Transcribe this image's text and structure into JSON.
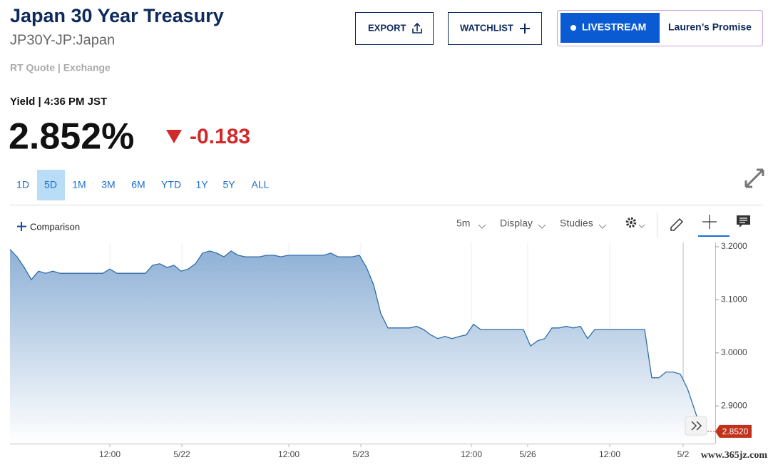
{
  "header": {
    "title": "Japan 30 Year Treasury",
    "symbol": "JP30Y-JP:Japan",
    "quote_source": "RT Quote | Exchange"
  },
  "buttons": {
    "export": "EXPORT",
    "watchlist": "WATCHLIST",
    "livestream": "LIVESTREAM",
    "promo": "Lauren’s Promise"
  },
  "quote": {
    "label": "Yield | 4:36 PM JST",
    "price": "2.852%",
    "change": "-0.183"
  },
  "ranges": [
    "1D",
    "5D",
    "1M",
    "3M",
    "6M",
    "YTD",
    "1Y",
    "5Y",
    "ALL"
  ],
  "selected_range": "5D",
  "toolbar": {
    "comparison": "Comparison",
    "interval": "5m",
    "display": "Display",
    "studies": "Studies"
  },
  "watermark": "www.365jz.com",
  "chart": {
    "type": "line",
    "color": "#2f6ea8",
    "values": [
      3.195,
      3.181,
      3.161,
      3.138,
      3.154,
      3.15,
      3.154,
      3.15,
      3.15,
      3.15,
      3.15,
      3.15,
      3.15,
      3.15,
      3.158,
      3.15,
      3.15,
      3.15,
      3.15,
      3.15,
      3.165,
      3.168,
      3.161,
      3.165,
      3.154,
      3.158,
      3.168,
      3.188,
      3.192,
      3.188,
      3.181,
      3.192,
      3.184,
      3.181,
      3.181,
      3.181,
      3.184,
      3.184,
      3.181,
      3.184,
      3.184,
      3.184,
      3.184,
      3.184,
      3.184,
      3.188,
      3.181,
      3.181,
      3.181,
      3.184,
      3.161,
      3.128,
      3.074,
      3.047,
      3.047,
      3.047,
      3.047,
      3.05,
      3.044,
      3.034,
      3.027,
      3.031,
      3.027,
      3.031,
      3.034,
      3.054,
      3.044,
      3.044,
      3.044,
      3.044,
      3.044,
      3.044,
      3.044,
      3.013,
      3.023,
      3.027,
      3.047,
      3.047,
      3.05,
      3.047,
      3.05,
      3.027,
      3.044,
      3.044,
      3.044,
      3.044,
      3.044,
      3.044,
      3.044,
      3.044,
      2.953,
      2.953,
      2.964,
      2.964,
      2.96,
      2.933,
      2.893,
      2.852
    ],
    "xlim": [
      0,
      97
    ],
    "xticks": [
      {
        "value": 14,
        "label": "12:00"
      },
      {
        "value": 24.1,
        "label": "5/22"
      },
      {
        "value": 39.1,
        "label": "12:00"
      },
      {
        "value": 49.2,
        "label": "5/23"
      },
      {
        "value": 64.7,
        "label": "12:00"
      },
      {
        "value": 72.6,
        "label": "5/26"
      },
      {
        "value": 84.1,
        "label": "12:00"
      },
      {
        "value": 94.4,
        "label": "5/2"
      }
    ],
    "ylim": [
      2.829,
      3.208
    ],
    "yticks": [
      {
        "value": 3.2,
        "label": "3.2000"
      },
      {
        "value": 3.1,
        "label": "3.1000"
      },
      {
        "value": 3.0,
        "label": "3.0000"
      },
      {
        "value": 2.9,
        "label": "2.9000"
      }
    ],
    "current": {
      "value": 2.852,
      "label": "2.8520"
    },
    "grid": true
  }
}
